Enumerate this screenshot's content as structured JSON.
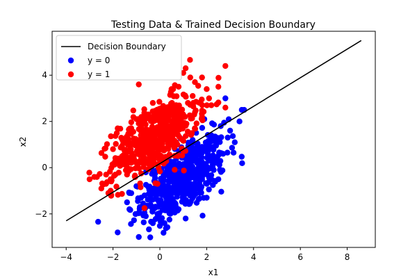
{
  "chart_data": {
    "type": "scatter",
    "title": "Testing Data & Trained Decision Boundary",
    "xlabel": "x1",
    "ylabel": "x2",
    "xlim": [
      -4.6,
      9.2
    ],
    "ylim": [
      -3.45,
      5.9
    ],
    "x_ticks": [
      -4,
      -2,
      0,
      2,
      4,
      6,
      8
    ],
    "y_ticks": [
      -2,
      0,
      2,
      4
    ],
    "x_tick_labels": [
      "−4",
      "−2",
      "0",
      "2",
      "4",
      "6",
      "8"
    ],
    "y_tick_labels": [
      "−2",
      "0",
      "2",
      "4"
    ],
    "grid": false,
    "legend_position": "top-left",
    "boundary": {
      "name": "Decision Boundary",
      "color": "#000000",
      "x": [
        -4.0,
        8.6
      ],
      "y": [
        -2.3,
        5.5
      ]
    },
    "series": [
      {
        "name": "y = 0",
        "color": "#0000ff",
        "center": [
          1.0,
          -0.5
        ],
        "spread": [
          0.9,
          0.9
        ],
        "correlation": 0.6,
        "count": 500,
        "points": [
          [
            -1.8,
            -2.8
          ],
          [
            -0.9,
            -3.0
          ],
          [
            -0.3,
            -2.4
          ],
          [
            0.2,
            -2.4
          ],
          [
            -1.3,
            -1.8
          ],
          [
            -1.4,
            -1.5
          ],
          [
            -0.6,
            -2.1
          ],
          [
            0.8,
            -1.8
          ],
          [
            1.3,
            -1.5
          ],
          [
            2.0,
            -1.3
          ],
          [
            2.0,
            -0.7
          ],
          [
            2.5,
            -0.5
          ],
          [
            2.8,
            3.0
          ],
          [
            3.2,
            1.1
          ],
          [
            3.4,
            2.0
          ],
          [
            3.5,
            2.5
          ],
          [
            3.6,
            2.5
          ],
          [
            2.9,
            1.3
          ],
          [
            -1.3,
            -1.1
          ],
          [
            -1.0,
            -0.8
          ],
          [
            -0.6,
            -0.2
          ],
          [
            -0.8,
            -1.3
          ],
          [
            0.1,
            -1.0
          ],
          [
            0.5,
            -0.4
          ],
          [
            1.0,
            0.0
          ],
          [
            1.5,
            0.4
          ],
          [
            1.8,
            0.9
          ],
          [
            2.2,
            1.4
          ],
          [
            2.6,
            1.8
          ],
          [
            2.4,
            1.0
          ],
          [
            0.3,
            -1.5
          ],
          [
            0.7,
            -1.1
          ],
          [
            1.2,
            -0.7
          ],
          [
            1.6,
            -0.2
          ],
          [
            2.1,
            0.3
          ],
          [
            1.9,
            2.1
          ],
          [
            1.4,
            1.2
          ],
          [
            0.9,
            0.6
          ],
          [
            0.4,
            0.1
          ],
          [
            -0.2,
            -0.6
          ],
          [
            1.1,
            -2.2
          ],
          [
            0.5,
            -1.9
          ],
          [
            -0.4,
            -1.6
          ],
          [
            1.7,
            -0.9
          ],
          [
            2.3,
            -0.1
          ],
          [
            2.7,
            0.6
          ],
          [
            3.0,
            1.6
          ],
          [
            -0.1,
            -2.0
          ],
          [
            0.6,
            -0.8
          ],
          [
            1.3,
            0.3
          ]
        ]
      },
      {
        "name": "y = 1",
        "color": "#ff0000",
        "center": [
          -0.2,
          1.3
        ],
        "spread": [
          0.9,
          0.9
        ],
        "correlation": 0.6,
        "count": 500,
        "points": [
          [
            -3.0,
            -0.5
          ],
          [
            -2.8,
            -0.4
          ],
          [
            -2.5,
            -0.9
          ],
          [
            -2.3,
            -0.7
          ],
          [
            -2.1,
            -0.5
          ],
          [
            -2.2,
            -1.1
          ],
          [
            -2.1,
            -1.0
          ],
          [
            -1.9,
            -0.3
          ],
          [
            -1.7,
            0.2
          ],
          [
            -1.4,
            -0.3
          ],
          [
            -0.1,
            -0.7
          ],
          [
            -0.9,
            3.6
          ],
          [
            -0.5,
            2.3
          ],
          [
            0.5,
            3.4
          ],
          [
            0.8,
            3.5
          ],
          [
            1.0,
            4.1
          ],
          [
            1.1,
            4.3
          ],
          [
            1.3,
            3.9
          ],
          [
            1.5,
            3.7
          ],
          [
            1.8,
            3.9
          ],
          [
            2.0,
            3.4
          ],
          [
            2.1,
            3.0
          ],
          [
            2.5,
            3.5
          ],
          [
            2.8,
            4.4
          ],
          [
            2.8,
            2.6
          ],
          [
            -2.0,
            0.8
          ],
          [
            -1.8,
            1.7
          ],
          [
            -1.3,
            1.6
          ],
          [
            -0.9,
            0.7
          ],
          [
            -0.7,
            1.9
          ],
          [
            -0.4,
            1.2
          ],
          [
            -0.2,
            0.6
          ],
          [
            0.0,
            2.0
          ],
          [
            0.3,
            1.4
          ],
          [
            0.6,
            2.6
          ],
          [
            0.9,
            1.9
          ],
          [
            1.2,
            2.8
          ],
          [
            1.5,
            2.4
          ],
          [
            1.8,
            2.2
          ],
          [
            2.2,
            2.7
          ],
          [
            -1.5,
            0.4
          ],
          [
            -1.1,
            1.1
          ],
          [
            -0.6,
            0.2
          ],
          [
            -0.3,
            2.8
          ],
          [
            0.2,
            2.3
          ],
          [
            -1.6,
            1.2
          ],
          [
            -1.0,
            2.1
          ],
          [
            0.4,
            0.5
          ],
          [
            0.7,
            1.1
          ],
          [
            1.4,
            3.1
          ]
        ]
      }
    ]
  }
}
